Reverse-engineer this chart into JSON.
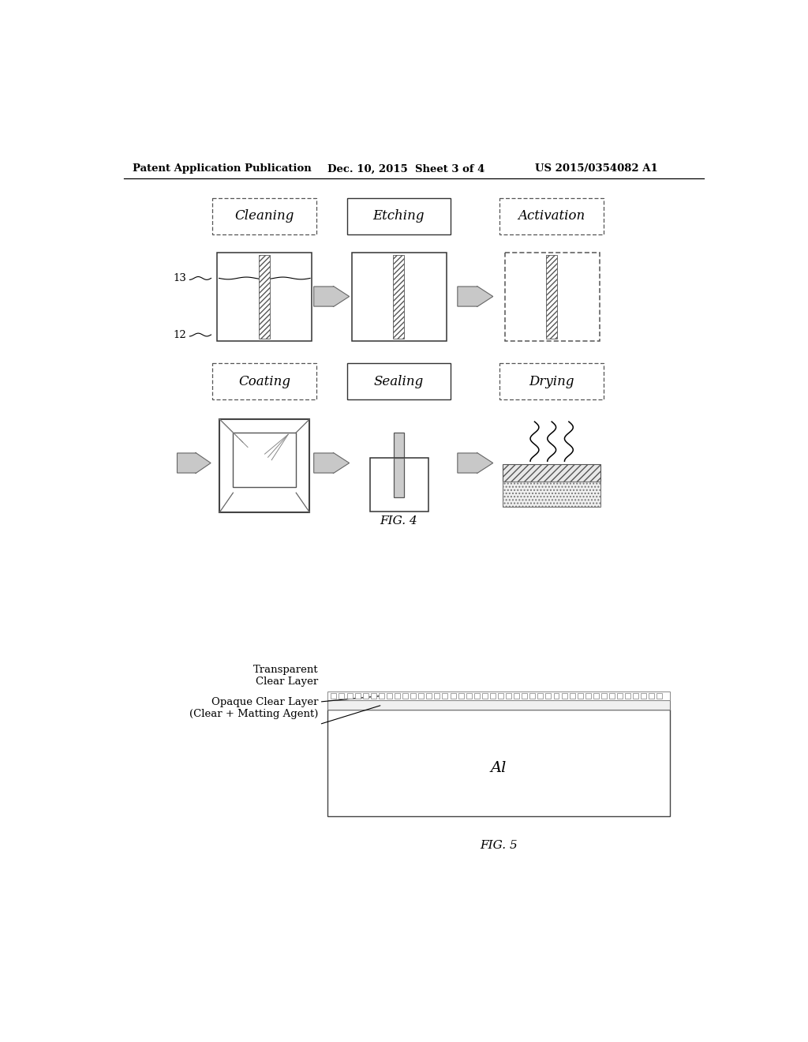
{
  "page_title_left": "Patent Application Publication",
  "page_title_mid": "Dec. 10, 2015  Sheet 3 of 4",
  "page_title_right": "US 2015/0354082 A1",
  "fig4_label": "FIG. 4",
  "fig5_label": "FIG. 5",
  "row1_labels": [
    "Cleaning",
    "Etching",
    "Activation"
  ],
  "row2_labels": [
    "Coating",
    "Sealing",
    "Drying"
  ],
  "fig5_layer1": "Transparent\nClear Layer",
  "fig5_layer2": "Opaque Clear Layer\n(Clear + Matting Agent)",
  "fig5_center": "Al",
  "label_13": "13",
  "label_12": "12",
  "bg_color": "#ffffff"
}
